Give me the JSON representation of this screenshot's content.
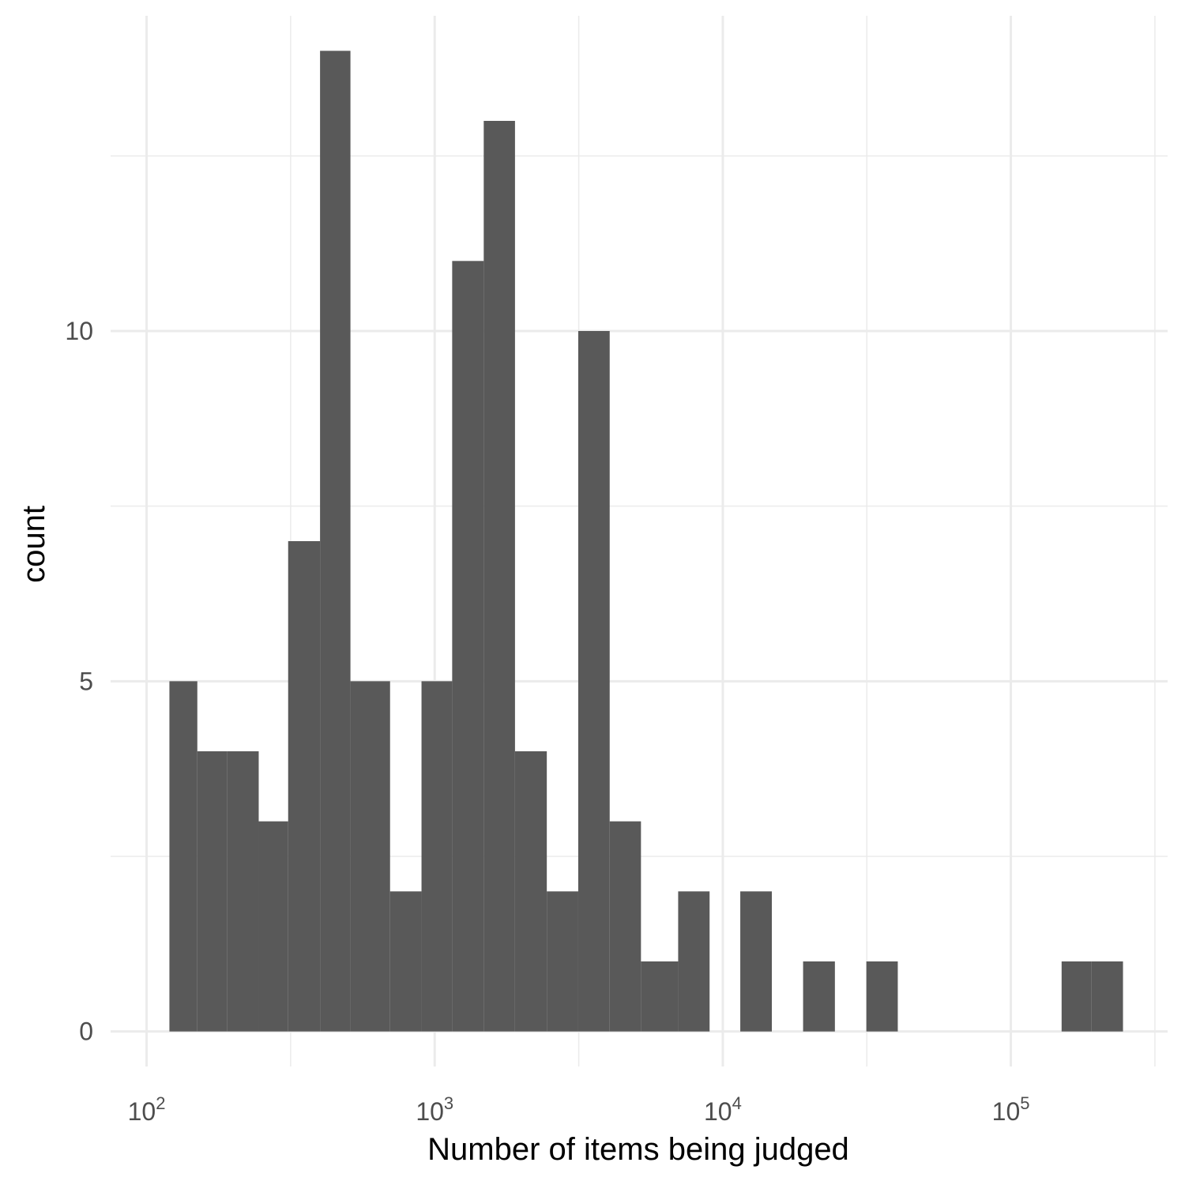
{
  "chart_data": {
    "type": "bar",
    "xlabel": "Number of items being judged",
    "ylabel": "count",
    "x_scale": "log10",
    "xlim": [
      75,
      350000
    ],
    "ylim": [
      -0.5,
      14.5
    ],
    "grid": true,
    "x_ticks": [
      {
        "base": "10",
        "exp": "2",
        "value": 100
      },
      {
        "base": "10",
        "exp": "3",
        "value": 1000
      },
      {
        "base": "10",
        "exp": "4",
        "value": 10000
      },
      {
        "base": "10",
        "exp": "5",
        "value": 100000
      }
    ],
    "y_ticks": [
      {
        "label": "0",
        "value": 0
      },
      {
        "label": "5",
        "value": 5
      },
      {
        "label": "10",
        "value": 10
      }
    ],
    "bins": [
      {
        "x0": 120,
        "x1": 150,
        "count": 5
      },
      {
        "x0": 150,
        "x1": 190,
        "count": 4
      },
      {
        "x0": 190,
        "x1": 245,
        "count": 4
      },
      {
        "x0": 245,
        "x1": 310,
        "count": 3
      },
      {
        "x0": 310,
        "x1": 400,
        "count": 7
      },
      {
        "x0": 400,
        "x1": 510,
        "count": 14
      },
      {
        "x0": 510,
        "x1": 700,
        "count": 5
      },
      {
        "x0": 700,
        "x1": 900,
        "count": 2
      },
      {
        "x0": 900,
        "x1": 1150,
        "count": 5
      },
      {
        "x0": 1150,
        "x1": 1480,
        "count": 11
      },
      {
        "x0": 1480,
        "x1": 1900,
        "count": 13
      },
      {
        "x0": 1900,
        "x1": 2450,
        "count": 4
      },
      {
        "x0": 2450,
        "x1": 3150,
        "count": 2
      },
      {
        "x0": 3150,
        "x1": 4050,
        "count": 10
      },
      {
        "x0": 4050,
        "x1": 5200,
        "count": 3
      },
      {
        "x0": 5200,
        "x1": 7000,
        "count": 1
      },
      {
        "x0": 7000,
        "x1": 9000,
        "count": 2
      },
      {
        "x0": 11500,
        "x1": 14800,
        "count": 2
      },
      {
        "x0": 19000,
        "x1": 24500,
        "count": 1
      },
      {
        "x0": 31500,
        "x1": 40500,
        "count": 1
      },
      {
        "x0": 150000,
        "x1": 190000,
        "count": 1
      },
      {
        "x0": 190000,
        "x1": 245000,
        "count": 1
      }
    ]
  }
}
